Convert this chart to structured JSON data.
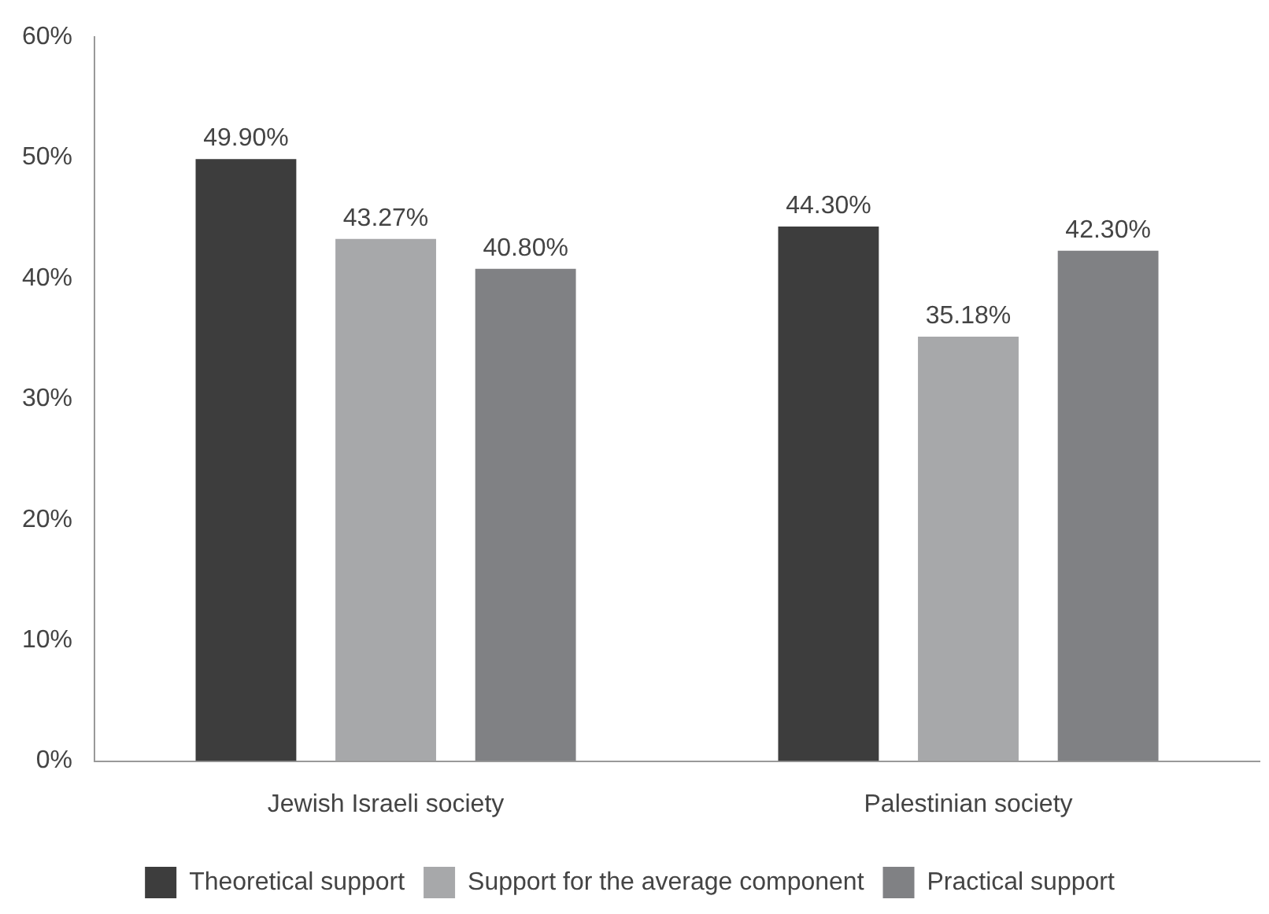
{
  "chart_data": {
    "type": "bar",
    "categories": [
      "Jewish Israeli society",
      "Palestinian society"
    ],
    "series": [
      {
        "name": "Theoretical support",
        "color": "#3d3d3d",
        "values": [
          49.9,
          44.3
        ],
        "value_labels": [
          "49.90%",
          "44.30%"
        ]
      },
      {
        "name": "Support for the average component",
        "color": "#a7a8aa",
        "values": [
          43.27,
          35.18
        ],
        "value_labels": [
          "43.27%",
          "35.18%"
        ]
      },
      {
        "name": "Practical support",
        "color": "#808184",
        "values": [
          40.8,
          42.3
        ],
        "value_labels": [
          "40.80%",
          "42.30%"
        ]
      }
    ],
    "ylim": [
      0,
      60
    ],
    "yticks": [
      {
        "value": 0,
        "label": "0%"
      },
      {
        "value": 10,
        "label": "10%"
      },
      {
        "value": 20,
        "label": "20%"
      },
      {
        "value": 30,
        "label": "30%"
      },
      {
        "value": 40,
        "label": "40%"
      },
      {
        "value": 50,
        "label": "50%"
      },
      {
        "value": 60,
        "label": "60%"
      }
    ],
    "grid": false,
    "legend": "bottom"
  }
}
